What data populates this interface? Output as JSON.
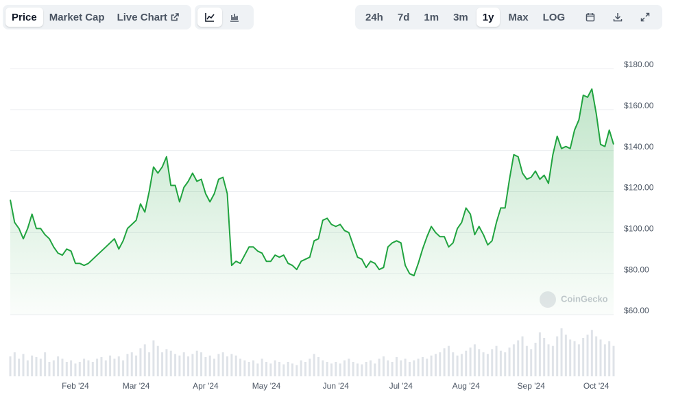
{
  "toolbar": {
    "left": [
      "Price",
      "Market Cap",
      "Live Chart"
    ],
    "right": [
      "24h",
      "7d",
      "1m",
      "3m",
      "1y",
      "Max",
      "LOG"
    ]
  },
  "watermark": "CoinGecko",
  "chart_data": {
    "type": "line",
    "color": "#20a33f",
    "categories": [
      null,
      null,
      null,
      null,
      null,
      null,
      null,
      null,
      null,
      null,
      null,
      null,
      null,
      null,
      null,
      "Feb '24",
      null,
      null,
      null,
      null,
      null,
      null,
      null,
      null,
      null,
      null,
      null,
      null,
      null,
      "Mar '24",
      null,
      null,
      null,
      null,
      null,
      null,
      null,
      null,
      null,
      null,
      null,
      null,
      null,
      null,
      null,
      "Apr '24",
      null,
      null,
      null,
      null,
      null,
      null,
      null,
      null,
      null,
      null,
      null,
      null,
      null,
      "May '24",
      null,
      null,
      null,
      null,
      null,
      null,
      null,
      null,
      null,
      null,
      null,
      null,
      null,
      null,
      null,
      "Jun '24",
      null,
      null,
      null,
      null,
      null,
      null,
      null,
      null,
      null,
      null,
      null,
      null,
      null,
      null,
      "Jul '24",
      null,
      null,
      null,
      null,
      null,
      null,
      null,
      null,
      null,
      null,
      null,
      null,
      null,
      null,
      "Aug '24",
      null,
      null,
      null,
      null,
      null,
      null,
      null,
      null,
      null,
      null,
      null,
      null,
      null,
      null,
      "Sep '24",
      null,
      null,
      null,
      null,
      null,
      null,
      null,
      null,
      null,
      null,
      null,
      null,
      null,
      null,
      "Oct '24",
      null,
      null,
      null,
      null
    ],
    "values": [
      116,
      105,
      102,
      97,
      102,
      109,
      102,
      102,
      99,
      97,
      93,
      90,
      89,
      92,
      91,
      85,
      85,
      84,
      85,
      87,
      89,
      91,
      93,
      95,
      97,
      92,
      96,
      102,
      104,
      106,
      114,
      110,
      120,
      132,
      129,
      132,
      137,
      123,
      123,
      115,
      122,
      125,
      129,
      125,
      126,
      119,
      115,
      119,
      126,
      127,
      119,
      84,
      86,
      85,
      89,
      93,
      93,
      91,
      90,
      86,
      86,
      89,
      88,
      89,
      85,
      84,
      82,
      86,
      87,
      88,
      96,
      97,
      106,
      107,
      104,
      103,
      104,
      101,
      100,
      94,
      88,
      87,
      83,
      86,
      85,
      82,
      83,
      93,
      95,
      96,
      95,
      84,
      80,
      79,
      85,
      92,
      98,
      103,
      100,
      98,
      98,
      93,
      95,
      102,
      105,
      112,
      109,
      99,
      103,
      99,
      94,
      96,
      105,
      112,
      112,
      126,
      138,
      137,
      129,
      126,
      127,
      130,
      126,
      128,
      124,
      138,
      147,
      141,
      142,
      141,
      150,
      155,
      167,
      166,
      170,
      158,
      143,
      142,
      150,
      143
    ],
    "volumes": [
      25,
      30,
      22,
      28,
      20,
      26,
      24,
      22,
      30,
      18,
      20,
      25,
      22,
      18,
      20,
      16,
      18,
      22,
      20,
      18,
      22,
      24,
      20,
      26,
      22,
      25,
      20,
      28,
      30,
      26,
      35,
      40,
      30,
      45,
      38,
      30,
      34,
      32,
      28,
      26,
      30,
      25,
      28,
      32,
      30,
      24,
      26,
      22,
      28,
      30,
      25,
      28,
      26,
      22,
      20,
      18,
      20,
      16,
      22,
      18,
      16,
      20,
      18,
      15,
      18,
      16,
      14,
      20,
      18,
      22,
      28,
      24,
      20,
      18,
      16,
      18,
      16,
      20,
      22,
      18,
      16,
      15,
      18,
      20,
      16,
      22,
      25,
      20,
      18,
      24,
      20,
      22,
      18,
      20,
      22,
      24,
      22,
      26,
      28,
      30,
      35,
      38,
      30,
      26,
      28,
      32,
      36,
      40,
      34,
      30,
      28,
      34,
      38,
      32,
      30,
      36,
      40,
      45,
      50,
      38,
      34,
      42,
      55,
      48,
      40,
      38,
      50,
      60,
      52,
      46,
      44,
      40,
      48,
      52,
      58,
      50,
      46,
      40,
      44,
      38
    ],
    "ylim": [
      60,
      180
    ],
    "yticks": [
      {
        "value": 60,
        "label": "$60.00"
      },
      {
        "value": 80,
        "label": "$80.00"
      },
      {
        "value": 100,
        "label": "$100.00"
      },
      {
        "value": 120,
        "label": "$120.00"
      },
      {
        "value": 140,
        "label": "$140.00"
      },
      {
        "value": 160,
        "label": "$160.00"
      },
      {
        "value": 180,
        "label": "$180.00"
      }
    ],
    "grid": true
  }
}
